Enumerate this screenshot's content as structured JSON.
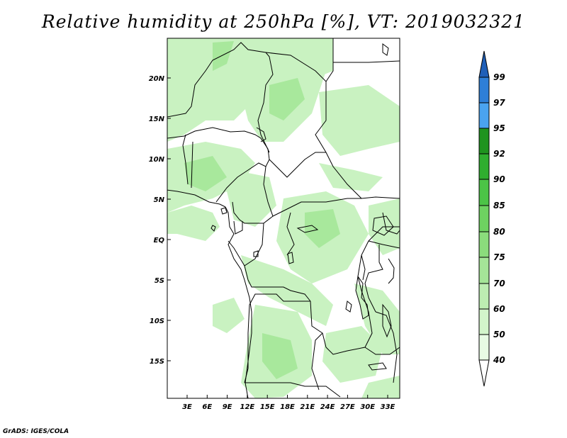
{
  "title": "Relative humidity at 250hPa [%], VT: 2019032321",
  "credit": "GrADS: IGES/COLA",
  "map": {
    "lat_labels": [
      "20N",
      "15N",
      "10N",
      "5N",
      "EQ",
      "5S",
      "10S",
      "15S"
    ],
    "lon_labels": [
      "3E",
      "6E",
      "9E",
      "12E",
      "15E",
      "18E",
      "21E",
      "24E",
      "27E",
      "30E",
      "33E"
    ]
  },
  "colorbar": {
    "levels": [
      "40",
      "50",
      "60",
      "70",
      "75",
      "80",
      "85",
      "90",
      "92",
      "95",
      "97",
      "99"
    ],
    "colors": [
      "#ffffff",
      "#e8fbe4",
      "#d3f5cb",
      "#bdedb2",
      "#a5e598",
      "#8bdc7c",
      "#6ed261",
      "#4cc447",
      "#2fae2f",
      "#1f941f",
      "#4aa3f0",
      "#2e7fd8",
      "#1f5fb8"
    ]
  }
}
